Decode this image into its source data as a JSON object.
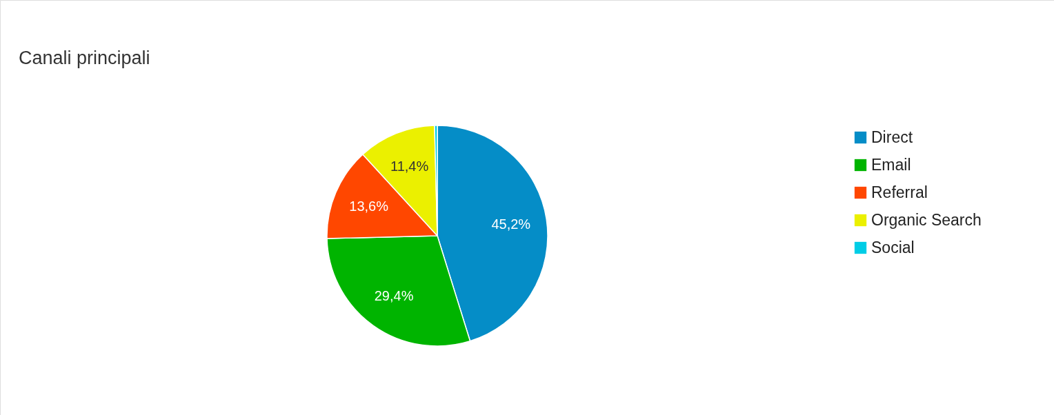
{
  "chart_data": {
    "type": "pie",
    "title": "Canali principali",
    "categories": [
      "Direct",
      "Email",
      "Referral",
      "Organic Search",
      "Social"
    ],
    "values": [
      45.2,
      29.4,
      13.6,
      11.4,
      0.4
    ],
    "colors": [
      "#058dc7",
      "#00b400",
      "#ff4700",
      "#ebf000",
      "#00cde6"
    ],
    "value_labels": [
      "45,2%",
      "29,4%",
      "13,6%",
      "11,4%",
      null
    ],
    "legend": "right"
  }
}
